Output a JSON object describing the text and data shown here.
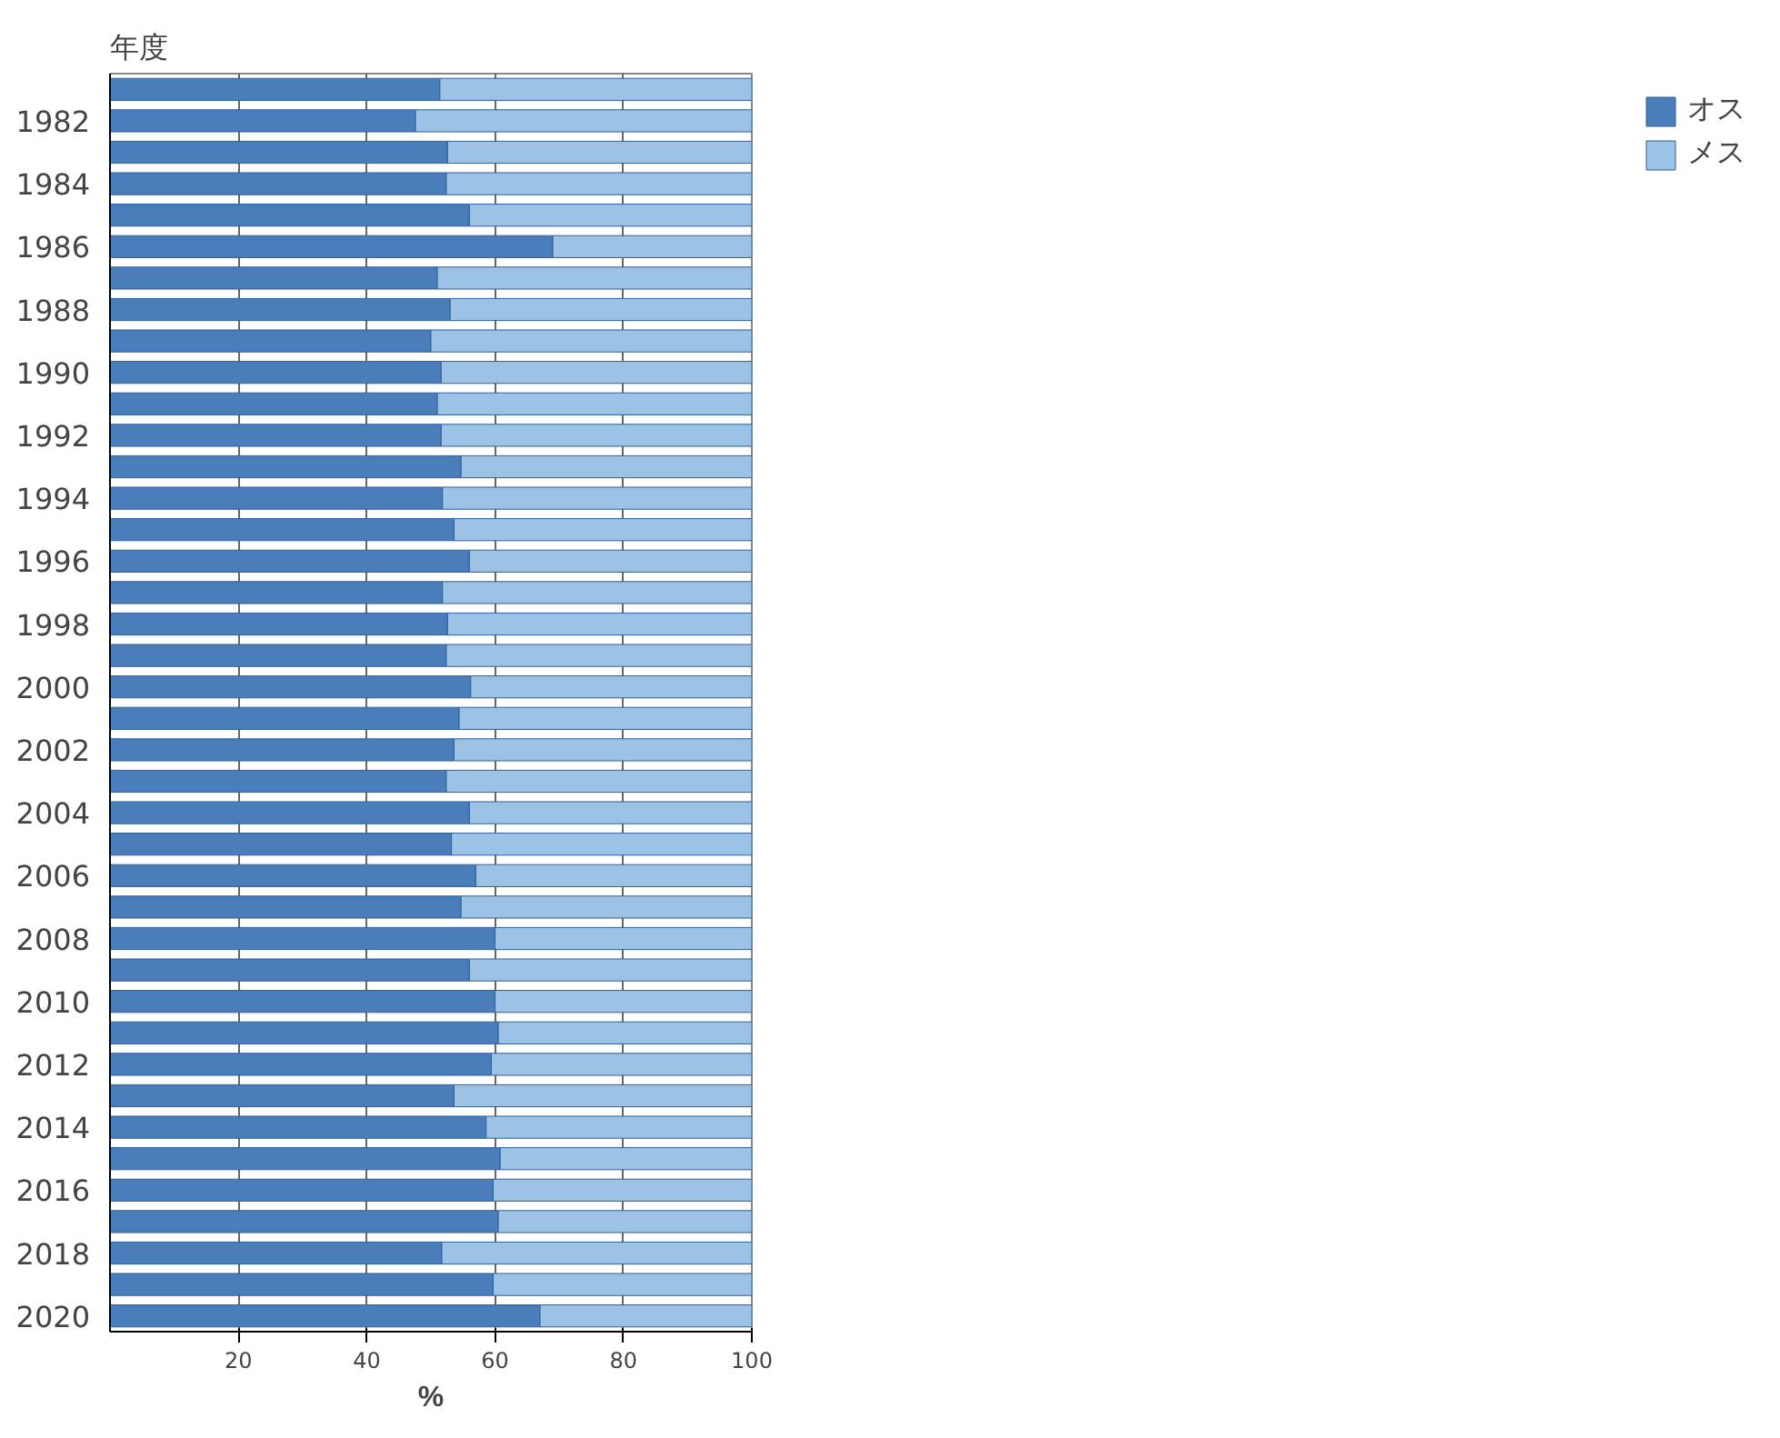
{
  "chart_data": {
    "type": "bar",
    "orientation": "horizontal",
    "stacked": true,
    "ylabel": "年度",
    "xlabel": "%",
    "categories": [
      null,
      "1982",
      null,
      "1984",
      null,
      "1986",
      null,
      "1988",
      null,
      "1990",
      null,
      "1992",
      null,
      "1994",
      null,
      "1996",
      null,
      "1998",
      null,
      "2000",
      null,
      "2002",
      null,
      "2004",
      null,
      "2006",
      null,
      "2008",
      null,
      "2010",
      null,
      "2012",
      null,
      "2014",
      null,
      "2016",
      null,
      "2018",
      null,
      "2020"
    ],
    "series": [
      {
        "name": "オス",
        "color": "#4a7ebb",
        "values": [
          51.4,
          47.6,
          52.6,
          52.4,
          56,
          69,
          51,
          53,
          50,
          51.6,
          51,
          51.6,
          54.7,
          51.8,
          53.6,
          56,
          51.8,
          52.6,
          52.4,
          56.2,
          54.4,
          53.6,
          52.4,
          56,
          53.2,
          57,
          54.7,
          60,
          56,
          60,
          60.5,
          59.4,
          53.6,
          58.6,
          60.8,
          59.7,
          60.5,
          51.7,
          59.7,
          67
        ]
      },
      {
        "name": "メス",
        "color": "#9cc2e5",
        "values": [
          48.6,
          52.4,
          47.4,
          47.6,
          44,
          31,
          49,
          47,
          50,
          48.4,
          49,
          48.4,
          45.3,
          48.2,
          46.4,
          44,
          48.2,
          47.4,
          47.6,
          43.8,
          45.6,
          46.4,
          47.6,
          44,
          46.8,
          43,
          45.3,
          40,
          44,
          40,
          39.5,
          40.6,
          46.4,
          41.4,
          39.2,
          40.3,
          39.5,
          48.3,
          40.3,
          33
        ]
      }
    ],
    "xlim": [
      0,
      100
    ],
    "xticks": [
      20,
      40,
      60,
      80,
      100
    ],
    "grid": "x",
    "legend": "right"
  }
}
